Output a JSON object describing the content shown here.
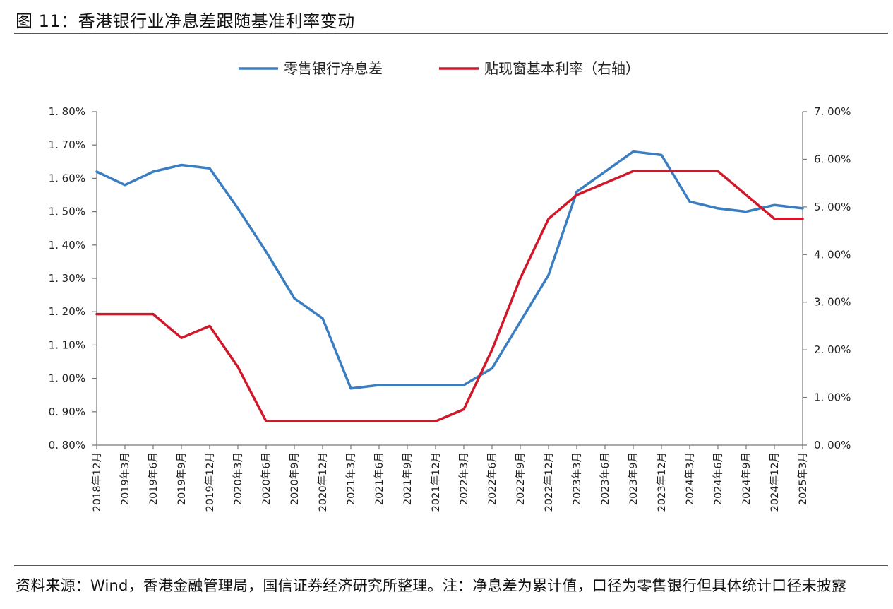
{
  "figure": {
    "title": "图 11：香港银行业净息差跟随基准利率变动",
    "source_note": "资料来源：Wind，香港金融管理局，国信证券经济研究所整理。注：净息差为累计值，口径为零售银行但具体统计口径未披露"
  },
  "chart_data": {
    "type": "line",
    "title": "图 11：香港银行业净息差跟随基准利率变动",
    "categories": [
      "2018年12月",
      "2019年3月",
      "2019年6月",
      "2019年9月",
      "2019年12月",
      "2020年3月",
      "2020年6月",
      "2020年9月",
      "2020年12月",
      "2021年3月",
      "2021年6月",
      "2021年9月",
      "2021年12月",
      "2022年3月",
      "2022年6月",
      "2022年9月",
      "2022年12月",
      "2023年3月",
      "2023年6月",
      "2023年9月",
      "2023年12月",
      "2024年3月",
      "2024年6月",
      "2024年9月",
      "2024年12月",
      "2025年3月"
    ],
    "series": [
      {
        "name": "零售银行净息差",
        "axis": "left",
        "color": "#3A7DC0",
        "values": [
          1.62,
          1.58,
          1.62,
          1.64,
          1.63,
          1.51,
          1.38,
          1.24,
          1.18,
          0.97,
          0.98,
          0.98,
          0.98,
          0.98,
          1.03,
          1.17,
          1.31,
          1.56,
          1.62,
          1.68,
          1.67,
          1.53,
          1.51,
          1.5,
          1.52,
          1.51
        ]
      },
      {
        "name": "贴现窗基本利率（右轴）",
        "axis": "right",
        "color": "#D0182A",
        "values": [
          2.75,
          2.75,
          2.75,
          2.25,
          2.5,
          1.64,
          0.5,
          0.5,
          0.5,
          0.5,
          0.5,
          0.5,
          0.5,
          0.75,
          2.0,
          3.5,
          4.75,
          5.25,
          5.5,
          5.75,
          5.75,
          5.75,
          5.75,
          5.25,
          4.75,
          4.75
        ]
      }
    ],
    "y_left": {
      "min": 0.8,
      "max": 1.8,
      "step": 0.1,
      "tick_labels": [
        "0. 80%",
        "0. 90%",
        "1. 00%",
        "1. 10%",
        "1. 20%",
        "1. 30%",
        "1. 40%",
        "1. 50%",
        "1. 60%",
        "1. 70%",
        "1. 80%"
      ]
    },
    "y_right": {
      "min": 0.0,
      "max": 7.0,
      "step": 1.0,
      "tick_labels": [
        "0. 00%",
        "1. 00%",
        "2. 00%",
        "3. 00%",
        "4. 00%",
        "5. 00%",
        "6. 00%",
        "7. 00%"
      ]
    },
    "grid": false,
    "legend": "top-center"
  }
}
